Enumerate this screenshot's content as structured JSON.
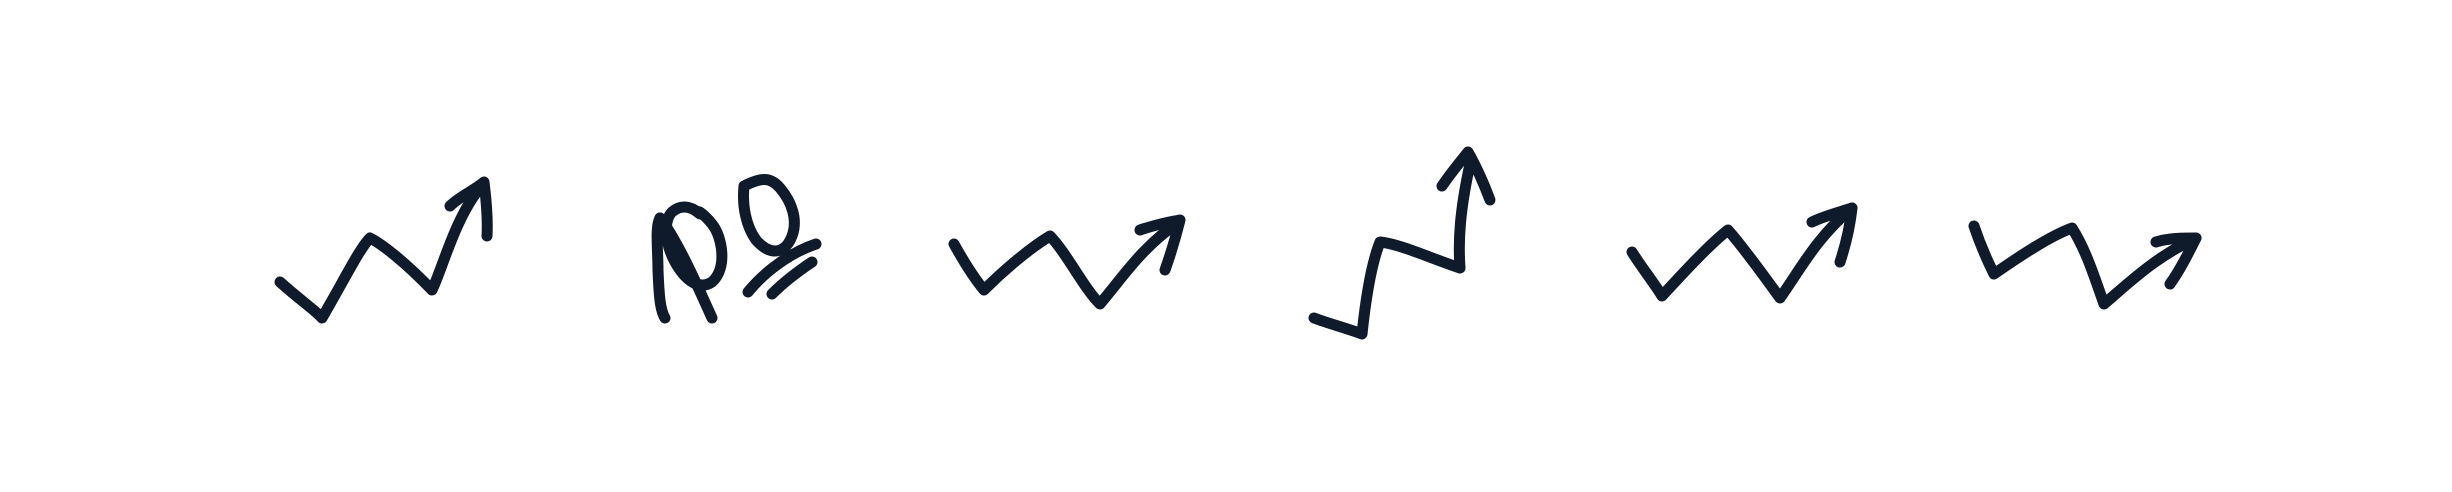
{
  "palette": {
    "background": "#ffffff",
    "ink": "#0f1a2a"
  },
  "doodles": [
    {
      "icon": "trend-arrow-zigzag-icon"
    },
    {
      "icon": "hundred-scribble-icon"
    },
    {
      "icon": "trend-arrow-zigzag-icon"
    },
    {
      "icon": "step-up-arrow-icon"
    },
    {
      "icon": "trend-arrow-zigzag-icon"
    },
    {
      "icon": "trend-arrow-zigzag-icon"
    }
  ]
}
